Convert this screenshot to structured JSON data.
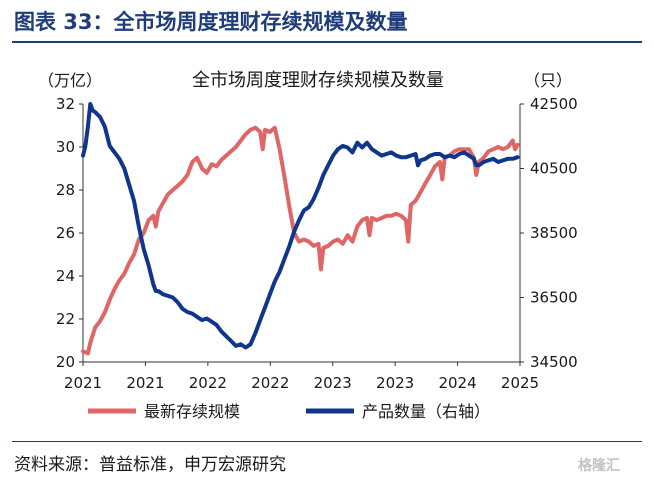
{
  "figure": {
    "heading": "图表 33：全市场周度理财存续规模及数量",
    "source": "资料来源：普益标准，申万宏源研究",
    "watermark": "格隆汇"
  },
  "chart_data": {
    "type": "line",
    "title": "全市场周度理财存续规模及数量",
    "y_left_unit": "（万亿）",
    "y_right_unit": "（只）",
    "ylim_left": [
      20,
      32
    ],
    "ylim_right": [
      34500,
      42500
    ],
    "y_left_ticks": [
      "20",
      "22",
      "24",
      "26",
      "28",
      "30",
      "32"
    ],
    "y_right_ticks": [
      "34500",
      "36500",
      "38500",
      "40500",
      "42500"
    ],
    "x_ticks": [
      "2021",
      "2021",
      "2022",
      "2022",
      "2023",
      "2023",
      "2024",
      "2025"
    ],
    "legend_position": "bottom",
    "series": [
      {
        "name": "最新存续规模",
        "axis": "left",
        "color": "#e06666",
        "points": [
          [
            0.0,
            20.5
          ],
          [
            0.02,
            20.4
          ],
          [
            0.03,
            20.9
          ],
          [
            0.05,
            21.6
          ],
          [
            0.07,
            21.9
          ],
          [
            0.09,
            22.3
          ],
          [
            0.11,
            22.9
          ],
          [
            0.13,
            23.4
          ],
          [
            0.15,
            23.8
          ],
          [
            0.17,
            24.1
          ],
          [
            0.19,
            24.6
          ],
          [
            0.21,
            25.0
          ],
          [
            0.23,
            25.7
          ],
          [
            0.25,
            26.0
          ],
          [
            0.27,
            26.6
          ],
          [
            0.29,
            26.8
          ],
          [
            0.3,
            26.3
          ],
          [
            0.31,
            27.0
          ],
          [
            0.33,
            27.4
          ],
          [
            0.35,
            27.8
          ],
          [
            0.37,
            28.0
          ],
          [
            0.39,
            28.2
          ],
          [
            0.41,
            28.4
          ],
          [
            0.43,
            28.7
          ],
          [
            0.45,
            29.3
          ],
          [
            0.47,
            29.5
          ],
          [
            0.49,
            29.0
          ],
          [
            0.51,
            28.8
          ],
          [
            0.53,
            29.2
          ],
          [
            0.55,
            29.1
          ],
          [
            0.57,
            29.4
          ],
          [
            0.59,
            29.6
          ],
          [
            0.61,
            29.8
          ],
          [
            0.63,
            30.0
          ],
          [
            0.65,
            30.3
          ],
          [
            0.67,
            30.6
          ],
          [
            0.69,
            30.8
          ],
          [
            0.71,
            30.9
          ],
          [
            0.73,
            30.7
          ],
          [
            0.74,
            29.9
          ],
          [
            0.75,
            30.8
          ],
          [
            0.77,
            30.7
          ],
          [
            0.79,
            30.9
          ],
          [
            0.81,
            29.9
          ],
          [
            0.83,
            28.6
          ],
          [
            0.85,
            27.2
          ],
          [
            0.87,
            26.0
          ],
          [
            0.89,
            25.6
          ],
          [
            0.91,
            25.7
          ],
          [
            0.93,
            25.6
          ],
          [
            0.95,
            25.4
          ],
          [
            0.97,
            25.5
          ],
          [
            0.98,
            24.3
          ],
          [
            0.99,
            25.3
          ],
          [
            1.01,
            25.4
          ],
          [
            1.03,
            25.6
          ],
          [
            1.05,
            25.7
          ],
          [
            1.07,
            25.5
          ],
          [
            1.09,
            25.9
          ],
          [
            1.11,
            25.6
          ],
          [
            1.13,
            26.3
          ],
          [
            1.15,
            26.6
          ],
          [
            1.17,
            26.7
          ],
          [
            1.18,
            25.9
          ],
          [
            1.19,
            26.7
          ],
          [
            1.21,
            26.6
          ],
          [
            1.23,
            26.7
          ],
          [
            1.25,
            26.8
          ],
          [
            1.27,
            26.8
          ],
          [
            1.29,
            26.9
          ],
          [
            1.31,
            26.8
          ],
          [
            1.33,
            26.6
          ],
          [
            1.34,
            25.6
          ],
          [
            1.35,
            27.3
          ],
          [
            1.37,
            27.5
          ],
          [
            1.39,
            27.9
          ],
          [
            1.41,
            28.3
          ],
          [
            1.43,
            28.7
          ],
          [
            1.45,
            29.1
          ],
          [
            1.47,
            29.3
          ],
          [
            1.48,
            28.5
          ],
          [
            1.49,
            29.5
          ],
          [
            1.51,
            29.6
          ],
          [
            1.53,
            29.8
          ],
          [
            1.55,
            29.9
          ],
          [
            1.57,
            29.9
          ],
          [
            1.59,
            29.9
          ],
          [
            1.61,
            29.5
          ],
          [
            1.62,
            28.7
          ],
          [
            1.63,
            29.3
          ],
          [
            1.65,
            29.5
          ],
          [
            1.67,
            29.8
          ],
          [
            1.69,
            29.9
          ],
          [
            1.71,
            30.0
          ],
          [
            1.73,
            29.9
          ],
          [
            1.75,
            30.0
          ],
          [
            1.77,
            30.3
          ],
          [
            1.78,
            29.9
          ],
          [
            1.79,
            30.1
          ]
        ]
      },
      {
        "name": "产品数量（右轴）",
        "axis": "right",
        "color": "#10358c",
        "points": [
          [
            0.0,
            40900
          ],
          [
            0.01,
            41200
          ],
          [
            0.02,
            41800
          ],
          [
            0.03,
            42500
          ],
          [
            0.04,
            42300
          ],
          [
            0.05,
            42250
          ],
          [
            0.07,
            42100
          ],
          [
            0.09,
            41800
          ],
          [
            0.11,
            41200
          ],
          [
            0.13,
            41000
          ],
          [
            0.15,
            40800
          ],
          [
            0.17,
            40500
          ],
          [
            0.19,
            40000
          ],
          [
            0.21,
            39500
          ],
          [
            0.23,
            38700
          ],
          [
            0.25,
            38000
          ],
          [
            0.27,
            37500
          ],
          [
            0.29,
            36900
          ],
          [
            0.3,
            36700
          ],
          [
            0.31,
            36700
          ],
          [
            0.33,
            36600
          ],
          [
            0.35,
            36550
          ],
          [
            0.37,
            36500
          ],
          [
            0.39,
            36350
          ],
          [
            0.41,
            36150
          ],
          [
            0.43,
            36050
          ],
          [
            0.45,
            36000
          ],
          [
            0.47,
            35900
          ],
          [
            0.49,
            35800
          ],
          [
            0.51,
            35850
          ],
          [
            0.53,
            35750
          ],
          [
            0.55,
            35650
          ],
          [
            0.57,
            35450
          ],
          [
            0.59,
            35300
          ],
          [
            0.61,
            35150
          ],
          [
            0.63,
            35000
          ],
          [
            0.65,
            35050
          ],
          [
            0.67,
            34950
          ],
          [
            0.69,
            35050
          ],
          [
            0.71,
            35400
          ],
          [
            0.73,
            35800
          ],
          [
            0.75,
            36200
          ],
          [
            0.77,
            36600
          ],
          [
            0.79,
            37000
          ],
          [
            0.81,
            37300
          ],
          [
            0.83,
            37700
          ],
          [
            0.85,
            38100
          ],
          [
            0.87,
            38550
          ],
          [
            0.89,
            38900
          ],
          [
            0.91,
            39200
          ],
          [
            0.93,
            39300
          ],
          [
            0.95,
            39550
          ],
          [
            0.97,
            39900
          ],
          [
            0.99,
            40300
          ],
          [
            1.01,
            40600
          ],
          [
            1.03,
            40900
          ],
          [
            1.05,
            41100
          ],
          [
            1.07,
            41200
          ],
          [
            1.09,
            41150
          ],
          [
            1.11,
            41000
          ],
          [
            1.13,
            41300
          ],
          [
            1.15,
            41150
          ],
          [
            1.17,
            41300
          ],
          [
            1.19,
            41100
          ],
          [
            1.21,
            41000
          ],
          [
            1.23,
            40900
          ],
          [
            1.25,
            40950
          ],
          [
            1.27,
            41000
          ],
          [
            1.29,
            40900
          ],
          [
            1.31,
            40850
          ],
          [
            1.33,
            40850
          ],
          [
            1.35,
            40900
          ],
          [
            1.37,
            40950
          ],
          [
            1.38,
            40600
          ],
          [
            1.39,
            40750
          ],
          [
            1.41,
            40800
          ],
          [
            1.43,
            40900
          ],
          [
            1.45,
            40950
          ],
          [
            1.47,
            40950
          ],
          [
            1.49,
            40850
          ],
          [
            1.51,
            40900
          ],
          [
            1.53,
            40850
          ],
          [
            1.55,
            40950
          ],
          [
            1.57,
            41000
          ],
          [
            1.59,
            40900
          ],
          [
            1.61,
            40800
          ],
          [
            1.62,
            40600
          ],
          [
            1.63,
            40600
          ],
          [
            1.65,
            40700
          ],
          [
            1.67,
            40750
          ],
          [
            1.69,
            40800
          ],
          [
            1.71,
            40700
          ],
          [
            1.73,
            40750
          ],
          [
            1.75,
            40800
          ],
          [
            1.77,
            40800
          ],
          [
            1.79,
            40850
          ]
        ]
      }
    ]
  }
}
